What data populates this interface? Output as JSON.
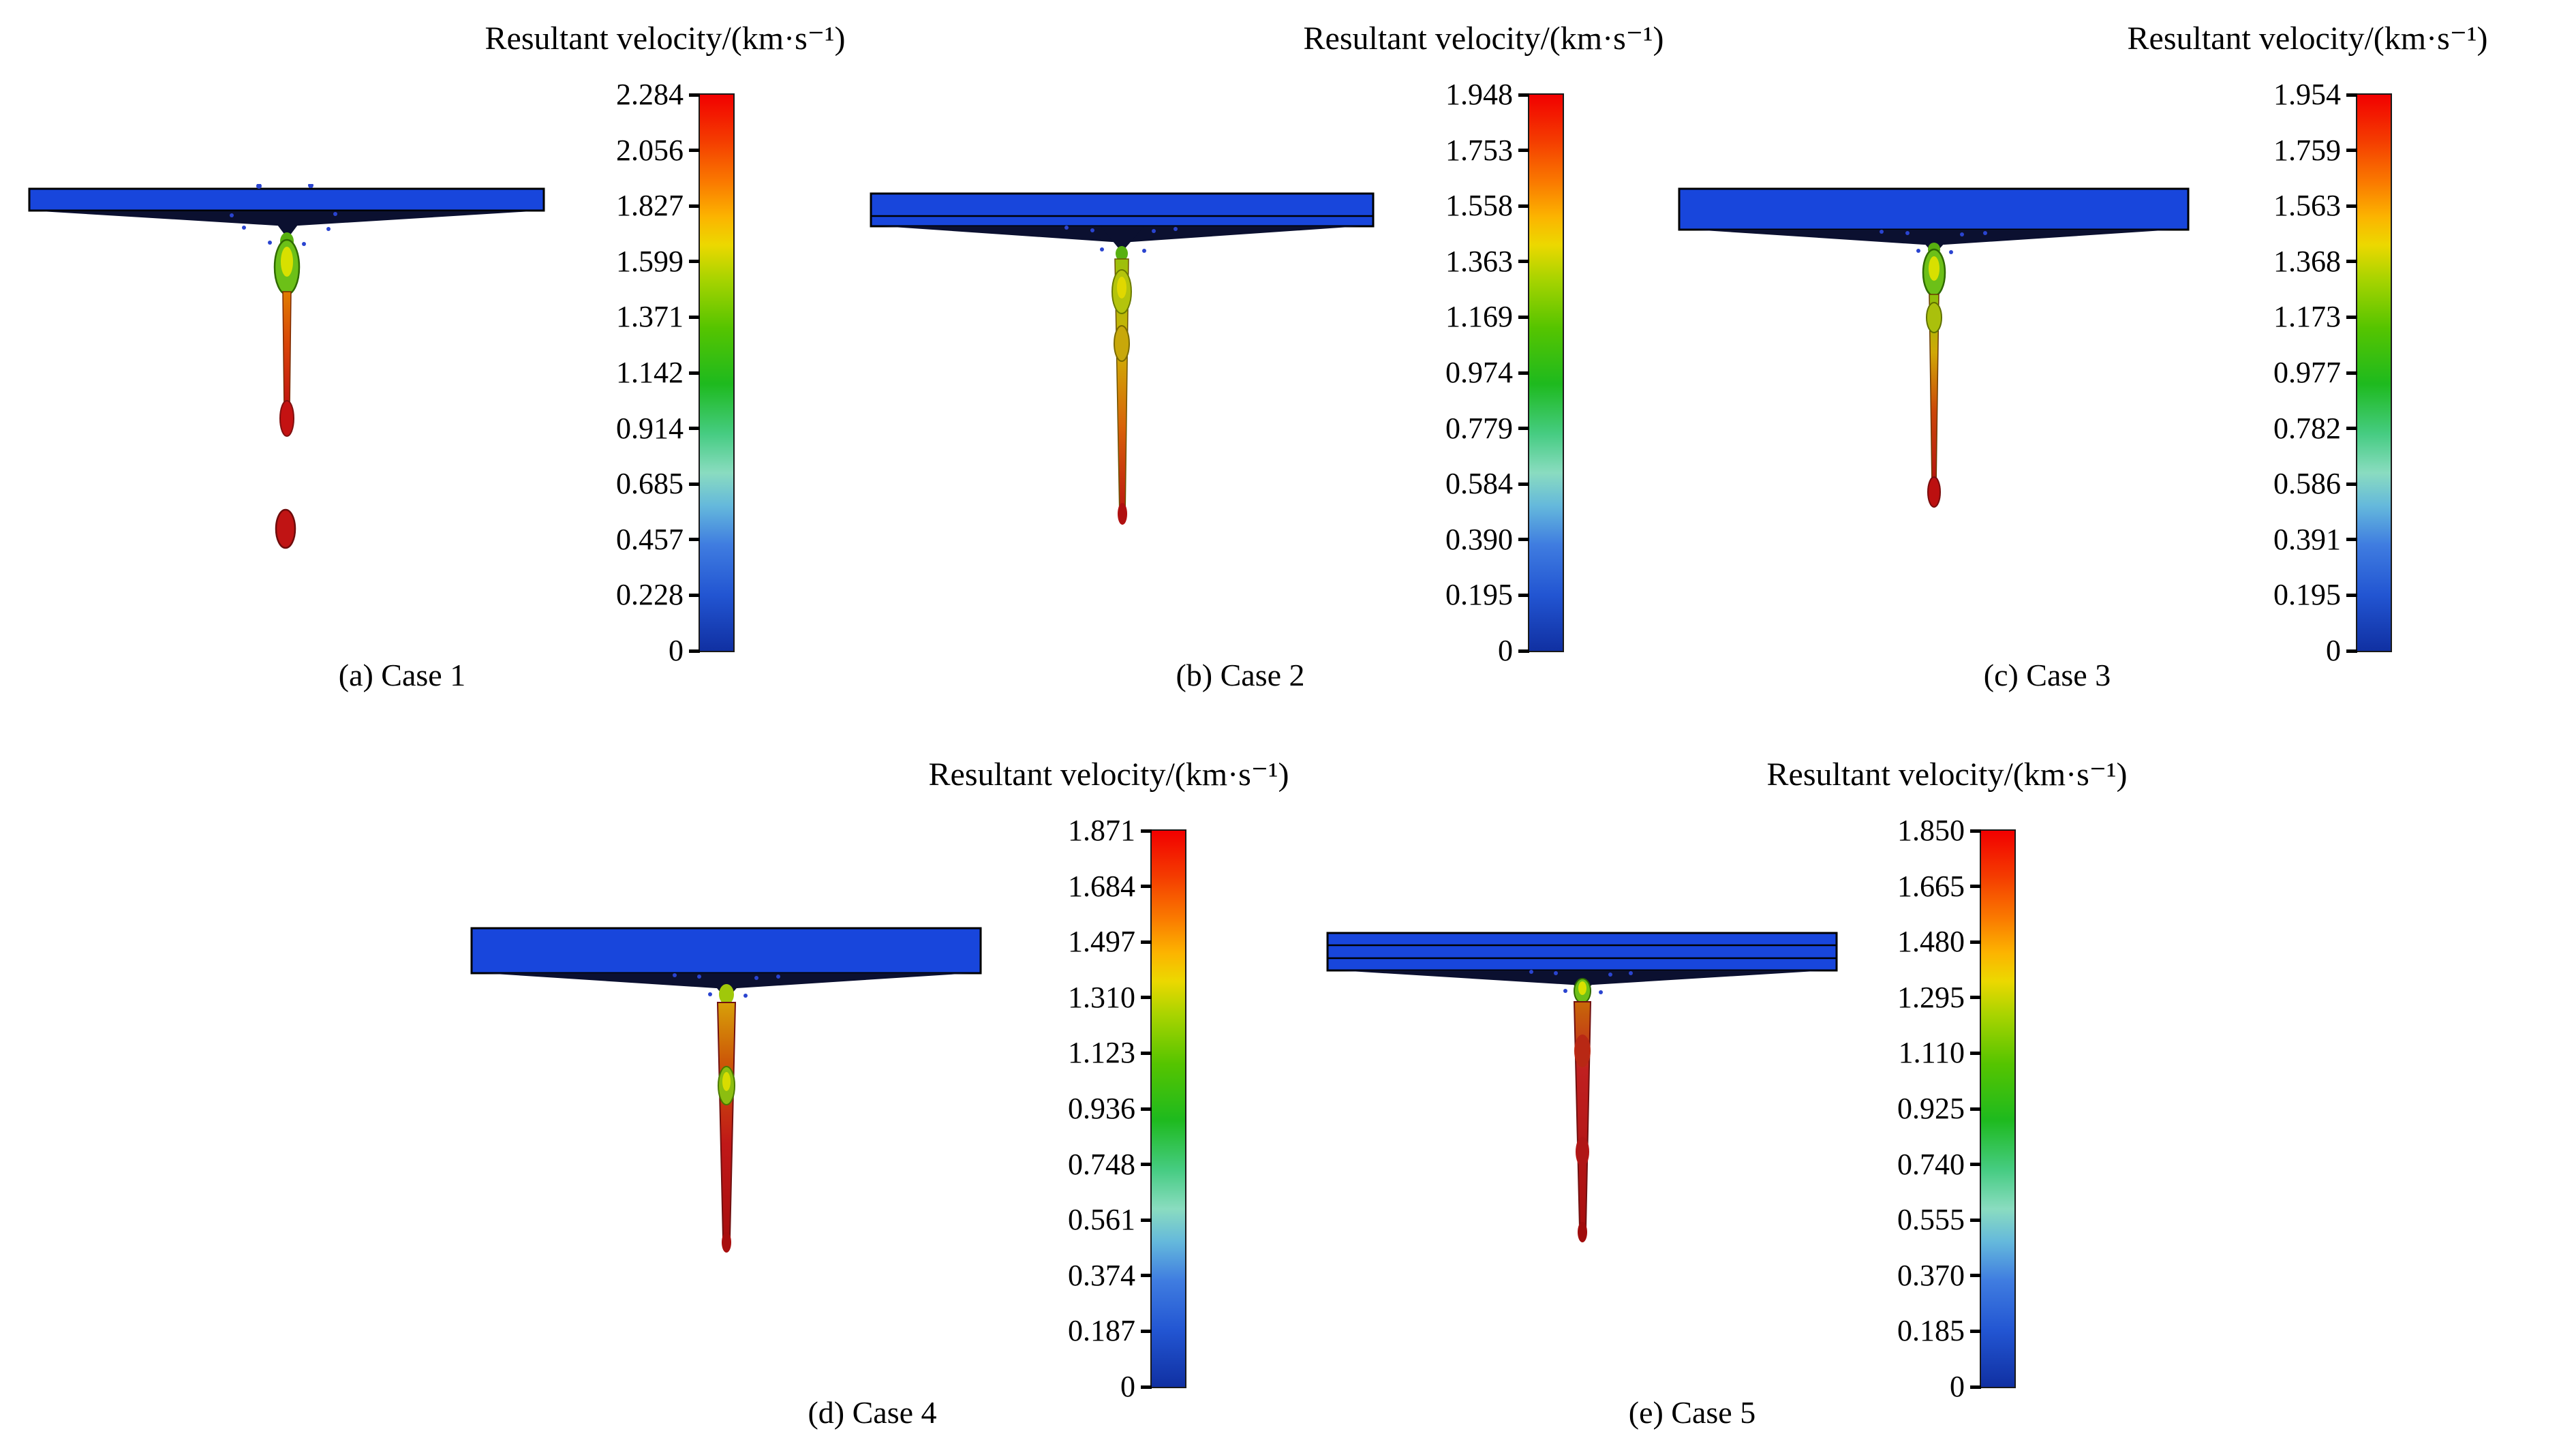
{
  "figure": {
    "description": "Simulation contour results of resultant velocity for five cases",
    "colors": {
      "plate_blue": "#1846dc",
      "colorbar_max_red": "#f20000",
      "colorbar_min_blue": "#1030a2"
    },
    "panels": [
      {
        "id": "a",
        "caption": "(a) Case 1",
        "title": "Resultant velocity/(km·s⁻¹)",
        "ticks": [
          "2.284",
          "2.056",
          "1.827",
          "1.599",
          "1.371",
          "1.142",
          "0.914",
          "0.685",
          "0.457",
          "0.228",
          "0"
        ]
      },
      {
        "id": "b",
        "caption": "(b) Case 2",
        "title": "Resultant velocity/(km·s⁻¹)",
        "ticks": [
          "1.948",
          "1.753",
          "1.558",
          "1.363",
          "1.169",
          "0.974",
          "0.779",
          "0.584",
          "0.390",
          "0.195",
          "0"
        ]
      },
      {
        "id": "c",
        "caption": "(c) Case 3",
        "title": "Resultant velocity/(km·s⁻¹)",
        "ticks": [
          "1.954",
          "1.759",
          "1.563",
          "1.368",
          "1.173",
          "0.977",
          "0.782",
          "0.586",
          "0.391",
          "0.195",
          "0"
        ]
      },
      {
        "id": "d",
        "caption": "(d) Case 4",
        "title": "Resultant velocity/(km·s⁻¹)",
        "ticks": [
          "1.871",
          "1.684",
          "1.497",
          "1.310",
          "1.123",
          "0.936",
          "0.748",
          "0.561",
          "0.374",
          "0.187",
          "0"
        ]
      },
      {
        "id": "e",
        "caption": "(e) Case 5",
        "title": "Resultant velocity/(km·s⁻¹)",
        "ticks": [
          "1.850",
          "1.665",
          "1.480",
          "1.295",
          "1.110",
          "0.925",
          "0.740",
          "0.555",
          "0.370",
          "0.185",
          "0"
        ]
      }
    ]
  }
}
